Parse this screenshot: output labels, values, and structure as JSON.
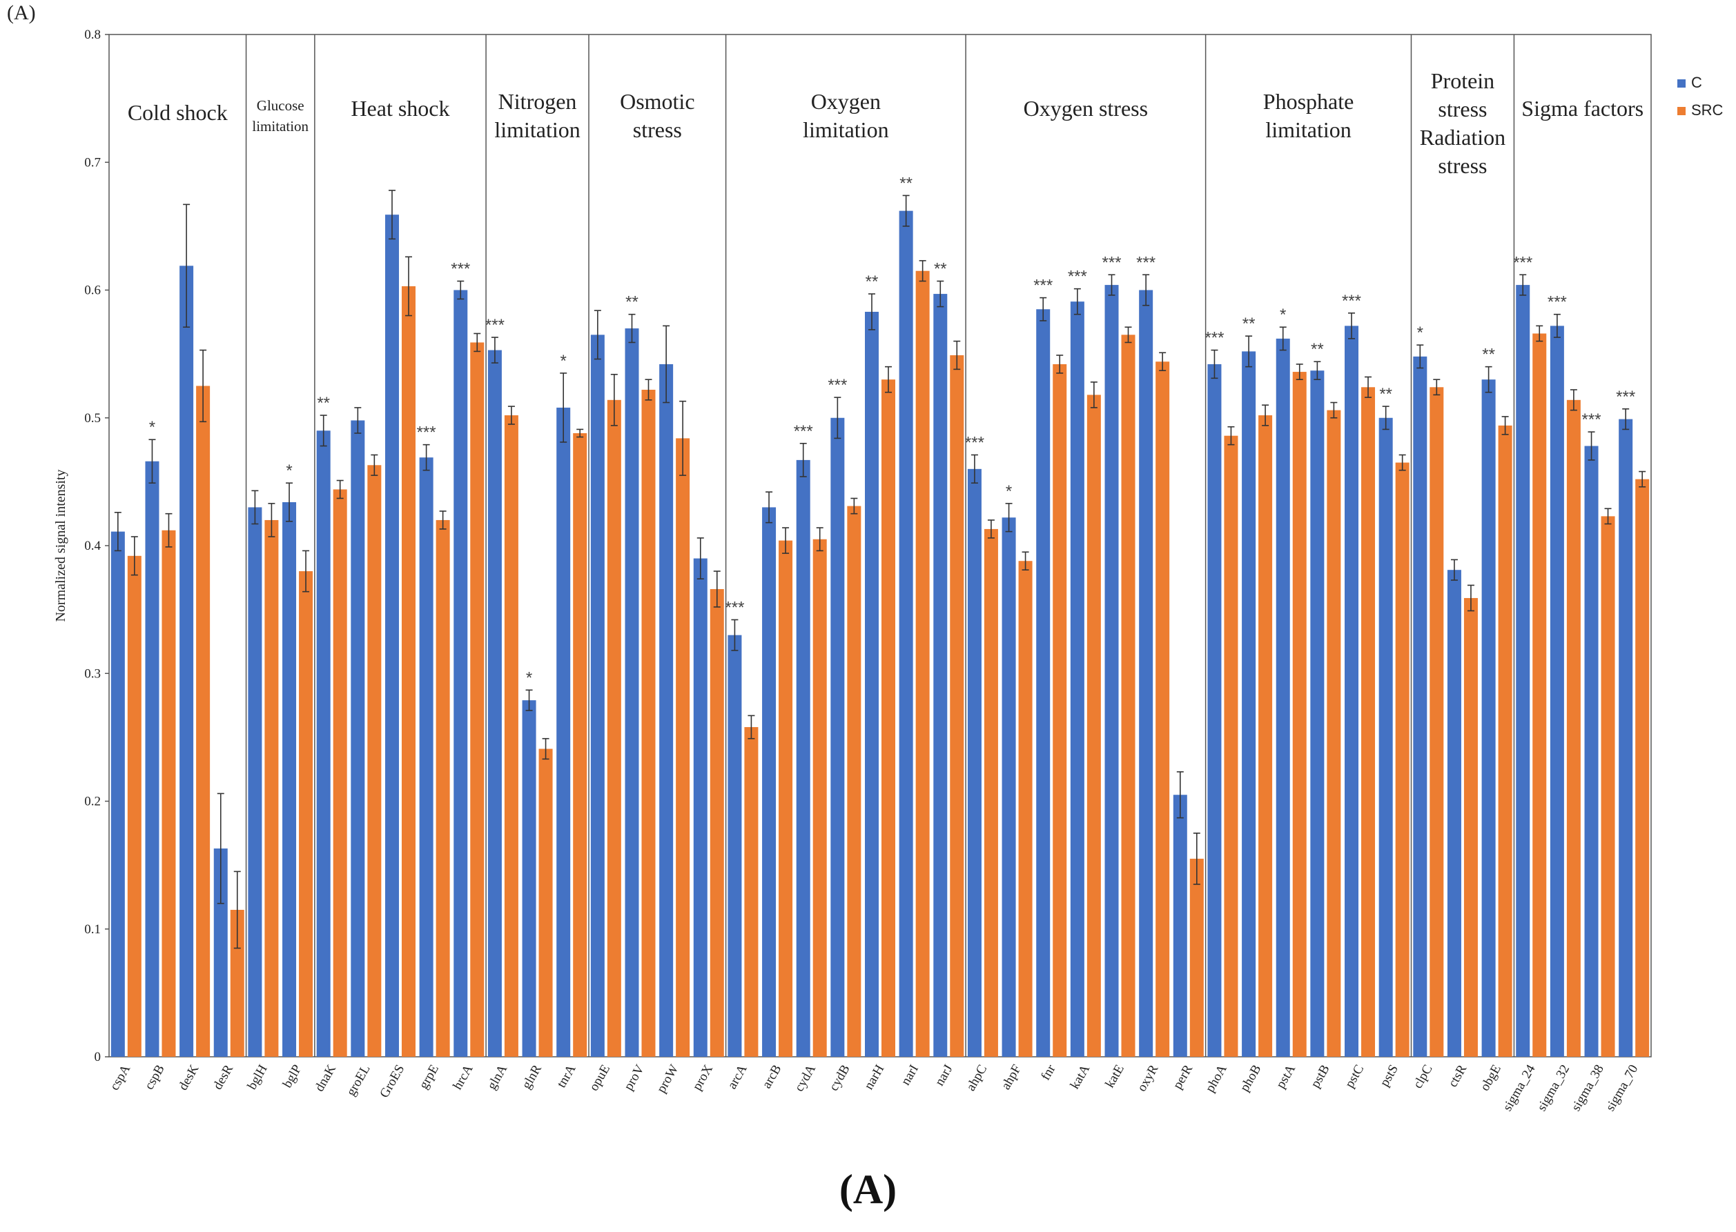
{
  "panel_tag": "(A)",
  "caption": "(A)",
  "colors": {
    "C": "#4472C4",
    "SRC": "#ED7D31",
    "axis": "#555555",
    "text": "#222222"
  },
  "chart_data": {
    "type": "bar",
    "title": "",
    "xlabel": "",
    "ylabel": "Normalized signal intensity",
    "ylim": [
      0,
      0.8
    ],
    "yticks": [
      0,
      0.1,
      0.2,
      0.3,
      0.4,
      0.5,
      0.6,
      0.7,
      0.8
    ],
    "ytick_labels": [
      "0",
      "0.1",
      "0.2",
      "0.3",
      "0.4",
      "0.5",
      "0.6",
      "0.7",
      "0.8"
    ],
    "legend": {
      "position": "top-right",
      "entries": [
        "C",
        "SRC"
      ]
    },
    "series_names": [
      "C",
      "SRC"
    ],
    "groups": [
      {
        "label_lines": [
          "Cold shock"
        ],
        "genes": [
          "cspA",
          "cspB",
          "desK",
          "desR"
        ]
      },
      {
        "label_lines": [
          "Glucose",
          "limitation"
        ],
        "genes": [
          "bglH",
          "bglP"
        ]
      },
      {
        "label_lines": [
          "Heat shock"
        ],
        "genes": [
          "dnaK",
          "groEL",
          "GroES",
          "grpE",
          "hrcA"
        ]
      },
      {
        "label_lines": [
          "Nitrogen",
          "limitation"
        ],
        "genes": [
          "glnA",
          "glnR",
          "tnrA"
        ]
      },
      {
        "label_lines": [
          "Osmotic",
          "stress"
        ],
        "genes": [
          "opuE",
          "proV",
          "proW",
          "proX"
        ]
      },
      {
        "label_lines": [
          "Oxygen",
          "limitation"
        ],
        "genes": [
          "arcA",
          "arcB",
          "cydA",
          "cydB",
          "narH",
          "narI",
          "narJ"
        ]
      },
      {
        "label_lines": [
          "Oxygen stress"
        ],
        "genes": [
          "ahpC",
          "ahpF",
          "fnr",
          "katA",
          "katE",
          "oxyR",
          "perR"
        ]
      },
      {
        "label_lines": [
          "Phosphate",
          "limitation"
        ],
        "genes": [
          "phoA",
          "phoB",
          "pstA",
          "pstB",
          "pstC",
          "pstS"
        ]
      },
      {
        "label_lines": [
          "Protein",
          "stress",
          "Radiation",
          "stress"
        ],
        "genes": [
          "clpC",
          "ctsR",
          "obgE"
        ]
      },
      {
        "label_lines": [
          "Sigma factors"
        ],
        "genes": [
          "sigma_24",
          "sigma_32",
          "sigma_38",
          "sigma_70"
        ]
      }
    ],
    "categories": [
      "cspA",
      "cspB",
      "desK",
      "desR",
      "bglH",
      "bglP",
      "dnaK",
      "groEL",
      "GroES",
      "grpE",
      "hrcA",
      "glnA",
      "glnR",
      "tnrA",
      "opuE",
      "proV",
      "proW",
      "proX",
      "arcA",
      "arcB",
      "cydA",
      "cydB",
      "narH",
      "narI",
      "narJ",
      "ahpC",
      "ahpF",
      "fnr",
      "katA",
      "katE",
      "oxyR",
      "perR",
      "phoA",
      "phoB",
      "pstA",
      "pstB",
      "pstC",
      "pstS",
      "clpC",
      "ctsR",
      "obgE",
      "sigma_24",
      "sigma_32",
      "sigma_38",
      "sigma_70"
    ],
    "series": [
      {
        "name": "C",
        "values": [
          0.411,
          0.466,
          0.619,
          0.163,
          0.43,
          0.434,
          0.49,
          0.498,
          0.659,
          0.469,
          0.6,
          0.553,
          0.279,
          0.508,
          0.565,
          0.57,
          0.542,
          0.39,
          0.33,
          0.43,
          0.467,
          0.5,
          0.583,
          0.662,
          0.597,
          0.46,
          0.422,
          0.585,
          0.591,
          0.604,
          0.6,
          0.205,
          0.542,
          0.552,
          0.562,
          0.537,
          0.572,
          0.5,
          0.548,
          0.381,
          0.53,
          0.604,
          0.572,
          0.478,
          0.499
        ],
        "errors": [
          0.015,
          0.017,
          0.048,
          0.043,
          0.013,
          0.015,
          0.012,
          0.01,
          0.019,
          0.01,
          0.007,
          0.01,
          0.008,
          0.027,
          0.019,
          0.011,
          0.03,
          0.016,
          0.012,
          0.012,
          0.013,
          0.016,
          0.014,
          0.012,
          0.01,
          0.011,
          0.011,
          0.009,
          0.01,
          0.008,
          0.012,
          0.018,
          0.011,
          0.012,
          0.009,
          0.007,
          0.01,
          0.009,
          0.009,
          0.008,
          0.01,
          0.008,
          0.009,
          0.011,
          0.008
        ]
      },
      {
        "name": "SRC",
        "values": [
          0.392,
          0.412,
          0.525,
          0.115,
          0.42,
          0.38,
          0.444,
          0.463,
          0.603,
          0.42,
          0.559,
          0.502,
          0.241,
          0.488,
          0.514,
          0.522,
          0.484,
          0.366,
          0.258,
          0.404,
          0.405,
          0.431,
          0.53,
          0.615,
          0.549,
          0.413,
          0.388,
          0.542,
          0.518,
          0.565,
          0.544,
          0.155,
          0.486,
          0.502,
          0.536,
          0.506,
          0.524,
          0.465,
          0.524,
          0.359,
          0.494,
          0.566,
          0.514,
          0.423,
          0.452
        ],
        "errors": [
          0.015,
          0.013,
          0.028,
          0.03,
          0.013,
          0.016,
          0.007,
          0.008,
          0.023,
          0.007,
          0.007,
          0.007,
          0.008,
          0.003,
          0.02,
          0.008,
          0.029,
          0.014,
          0.009,
          0.01,
          0.009,
          0.006,
          0.01,
          0.008,
          0.011,
          0.007,
          0.007,
          0.007,
          0.01,
          0.006,
          0.007,
          0.02,
          0.007,
          0.008,
          0.006,
          0.006,
          0.008,
          0.006,
          0.006,
          0.01,
          0.007,
          0.006,
          0.008,
          0.006,
          0.006
        ]
      }
    ],
    "significance": [
      "",
      "*",
      "",
      "",
      "",
      "*",
      "**",
      "",
      "",
      "***",
      "***",
      "***",
      "*",
      "*",
      "",
      "**",
      "",
      "",
      "***",
      "",
      "***",
      "***",
      "**",
      "**",
      "**",
      "***",
      "*",
      "***",
      "***",
      "***",
      "***",
      "",
      "***",
      "**",
      "*",
      "**",
      "***",
      "**",
      "*",
      "",
      "**",
      "***",
      "***",
      "***",
      "***"
    ]
  }
}
